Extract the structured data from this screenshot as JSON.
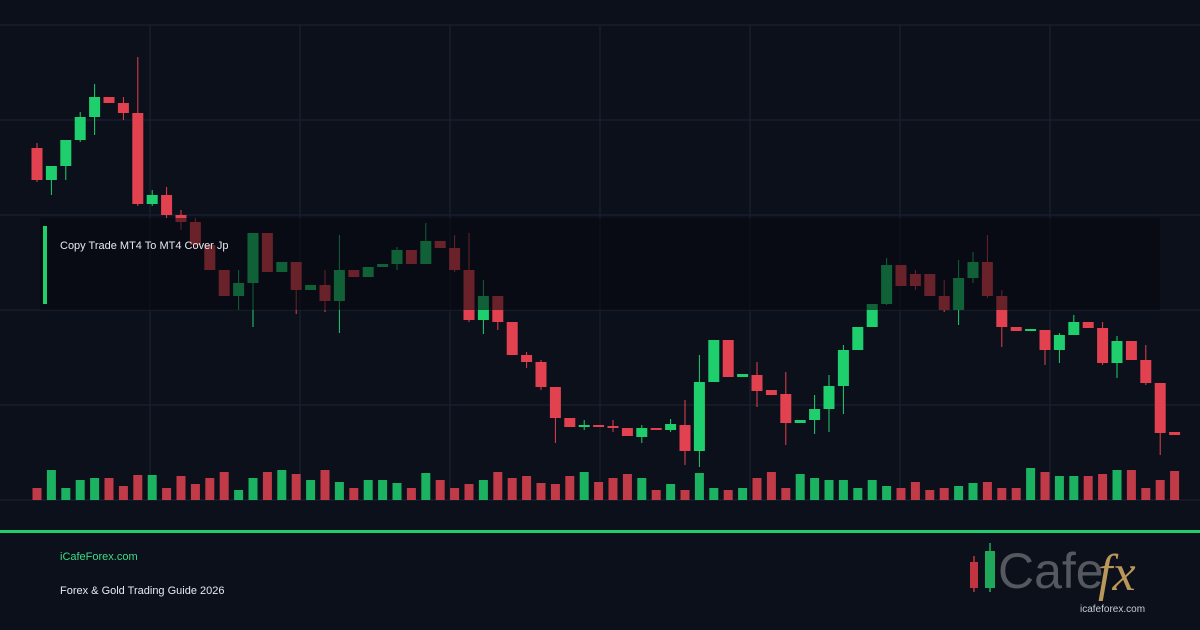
{
  "chart_data": {
    "type": "candlestick",
    "caption": "Copy Trade MT4 To MT4 Cover Jp",
    "ylim": [
      0,
      500
    ],
    "vlim": [
      0,
      100
    ],
    "up_color": "#1fcf6e",
    "down_color": "#e2424f",
    "open": [
      352,
      320,
      334,
      360,
      383,
      403,
      397,
      387,
      296,
      305,
      285,
      278,
      255,
      230,
      204,
      217,
      267,
      228,
      238,
      210,
      215,
      199,
      230,
      223,
      233,
      236,
      250,
      236,
      259,
      252,
      230,
      180,
      204,
      178,
      145,
      138,
      113,
      82,
      73,
      75,
      74,
      72,
      63,
      72,
      70,
      75,
      49,
      118,
      160,
      123,
      125,
      110,
      106,
      77,
      80,
      91,
      114,
      150,
      173,
      196,
      235,
      226,
      226,
      204,
      190,
      222,
      238,
      204,
      173,
      169,
      170,
      150,
      165,
      178,
      172,
      137,
      159,
      140,
      117,
      68
    ],
    "high": [
      357,
      334,
      360,
      388,
      416,
      403,
      403,
      443,
      310,
      313,
      290,
      282,
      255,
      230,
      230,
      267,
      267,
      238,
      238,
      215,
      230,
      265,
      230,
      233,
      236,
      253,
      250,
      277,
      259,
      265,
      267,
      220,
      204,
      178,
      148,
      140,
      113,
      82,
      80,
      75,
      80,
      72,
      75,
      72,
      81,
      100,
      145,
      160,
      160,
      126,
      138,
      110,
      128,
      80,
      105,
      125,
      155,
      173,
      196,
      242,
      235,
      230,
      226,
      220,
      240,
      248,
      265,
      210,
      173,
      171,
      170,
      167,
      185,
      178,
      178,
      164,
      159,
      155,
      117,
      68
    ],
    "low": [
      318,
      305,
      320,
      358,
      365,
      397,
      380,
      294,
      294,
      282,
      270,
      252,
      230,
      204,
      190,
      173,
      228,
      228,
      186,
      210,
      188,
      167,
      223,
      223,
      233,
      230,
      236,
      236,
      252,
      228,
      178,
      166,
      170,
      145,
      132,
      110,
      57,
      73,
      70,
      73,
      68,
      64,
      57,
      70,
      68,
      35,
      33,
      118,
      123,
      123,
      93,
      105,
      55,
      77,
      66,
      68,
      86,
      150,
      173,
      195,
      214,
      210,
      204,
      188,
      175,
      217,
      202,
      153,
      169,
      169,
      135,
      137,
      165,
      172,
      135,
      122,
      140,
      115,
      45,
      65
    ],
    "close": [
      320,
      334,
      360,
      383,
      403,
      397,
      387,
      296,
      305,
      285,
      278,
      255,
      230,
      204,
      217,
      267,
      228,
      238,
      210,
      215,
      199,
      230,
      223,
      233,
      236,
      250,
      236,
      259,
      252,
      230,
      180,
      204,
      178,
      145,
      138,
      113,
      82,
      73,
      75,
      73,
      72,
      64,
      72,
      70,
      76,
      49,
      118,
      160,
      123,
      126,
      109,
      105,
      77,
      80,
      91,
      114,
      150,
      173,
      196,
      235,
      214,
      214,
      204,
      190,
      222,
      238,
      204,
      173,
      169,
      171,
      150,
      165,
      178,
      172,
      137,
      159,
      140,
      117,
      67,
      65
    ],
    "volume": [
      12,
      30,
      12,
      20,
      22,
      22,
      14,
      25,
      25,
      12,
      24,
      16,
      22,
      28,
      10,
      22,
      28,
      30,
      26,
      20,
      30,
      18,
      12,
      20,
      20,
      17,
      12,
      27,
      20,
      12,
      16,
      20,
      28,
      22,
      24,
      17,
      16,
      24,
      28,
      18,
      22,
      26,
      22,
      10,
      16,
      10,
      27,
      12,
      10,
      12,
      22,
      28,
      12,
      26,
      22,
      20,
      20,
      12,
      20,
      14,
      12,
      18,
      10,
      12,
      14,
      17,
      18,
      12,
      12,
      32,
      28,
      24,
      24,
      24,
      26,
      30,
      30,
      12,
      20,
      29
    ]
  },
  "footer": {
    "site": "iCafeForex.com",
    "subtitle": "Forex & Gold Trading Guide 2026"
  },
  "logo": {
    "word": "Cafe",
    "accent": "fx",
    "url": "icafeforex.com"
  }
}
